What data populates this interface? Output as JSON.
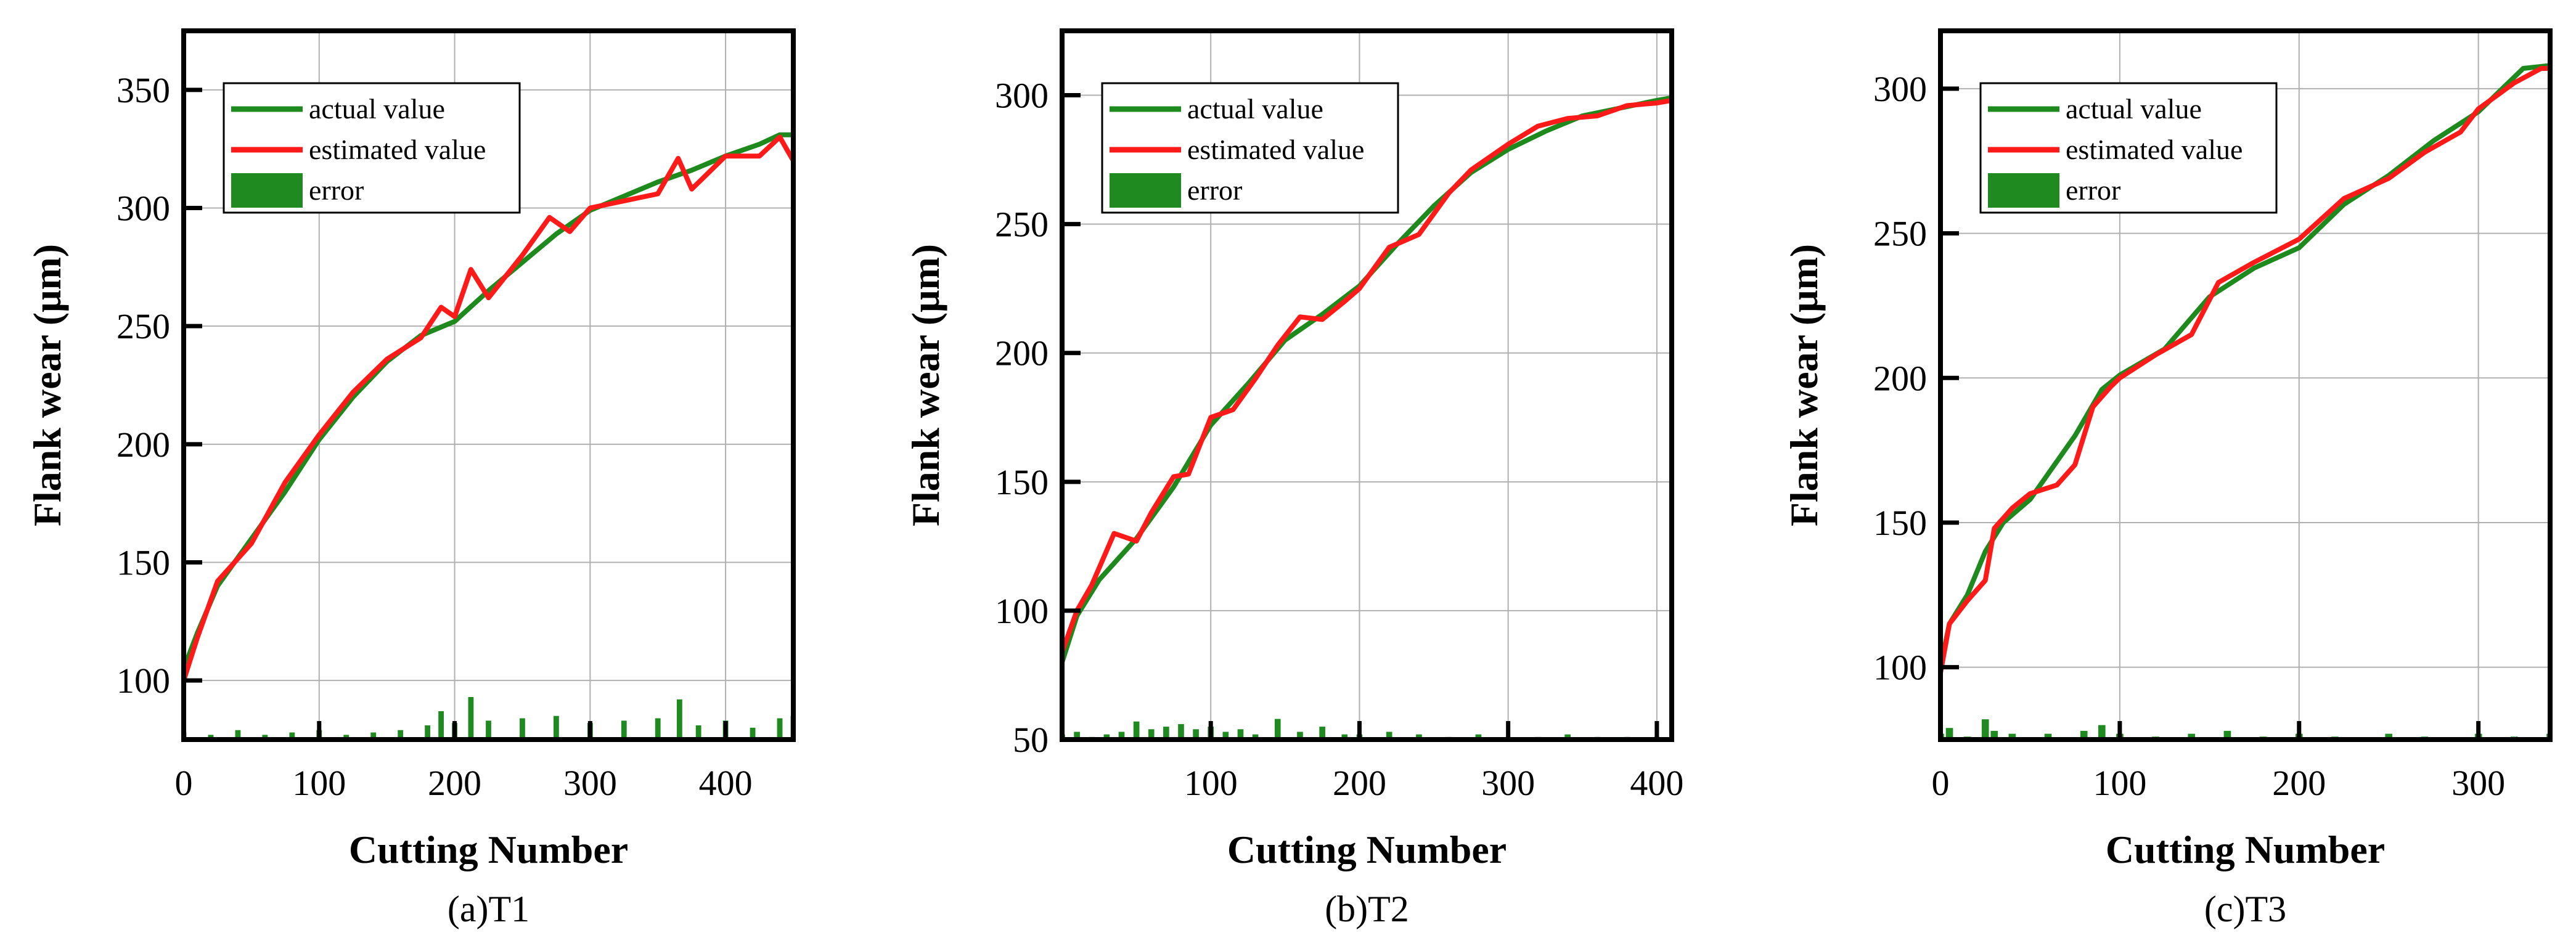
{
  "colors": {
    "actual": "#1e8a1e",
    "estimated": "#ff1a1a",
    "error": "#1f8a1f",
    "grid": "#b0b0b0",
    "axis": "#000000"
  },
  "chart_data": [
    {
      "type": "line",
      "caption": "(a)T1",
      "xlabel": "Cutting Number",
      "ylabel": "Flank wear (μm)",
      "xlim": [
        0,
        450
      ],
      "ylim": [
        75,
        375
      ],
      "xticks": [
        0,
        100,
        200,
        300,
        400
      ],
      "xtick_labels": [
        "0",
        "100",
        "200",
        "300",
        "400"
      ],
      "yticks": [
        100,
        150,
        200,
        250,
        300,
        350
      ],
      "ytick_labels": [
        "100",
        "150",
        "200",
        "250",
        "300",
        "350"
      ],
      "grid": true,
      "legend": {
        "position": "top-left",
        "entries": [
          "actual value",
          "estimated value",
          "error"
        ]
      },
      "series": [
        {
          "name": "actual value",
          "kind": "line",
          "x": [
            0,
            10,
            25,
            50,
            75,
            100,
            125,
            150,
            175,
            200,
            225,
            250,
            275,
            300,
            325,
            350,
            375,
            400,
            425,
            440,
            450
          ],
          "values": [
            105,
            120,
            140,
            160,
            180,
            202,
            220,
            235,
            246,
            252,
            265,
            277,
            289,
            299,
            305,
            311,
            316,
            322,
            327,
            331,
            331
          ]
        },
        {
          "name": "estimated value",
          "kind": "line",
          "x": [
            0,
            10,
            25,
            50,
            75,
            100,
            125,
            150,
            175,
            190,
            200,
            212,
            225,
            250,
            270,
            285,
            300,
            325,
            350,
            365,
            375,
            400,
            425,
            440,
            450
          ],
          "values": [
            100,
            118,
            142,
            158,
            184,
            204,
            222,
            236,
            245,
            258,
            254,
            274,
            262,
            280,
            296,
            290,
            300,
            303,
            306,
            321,
            308,
            322,
            322,
            330,
            320
          ]
        },
        {
          "name": "error",
          "kind": "bar",
          "x": [
            0,
            20,
            40,
            60,
            80,
            100,
            120,
            140,
            160,
            180,
            190,
            200,
            212,
            225,
            250,
            275,
            300,
            325,
            350,
            366,
            380,
            400,
            420,
            440,
            450
          ],
          "values": [
            3,
            2,
            4,
            2,
            3,
            4,
            2,
            3,
            4,
            6,
            12,
            7,
            18,
            8,
            9,
            10,
            7,
            8,
            9,
            17,
            6,
            8,
            5,
            9,
            10
          ]
        }
      ]
    },
    {
      "type": "line",
      "caption": "(b)T2",
      "xlabel": "Cutting Number",
      "ylabel": "Flank wear (μm)",
      "xlim": [
        0,
        410
      ],
      "ylim": [
        50,
        325
      ],
      "xticks": [
        100,
        200,
        300,
        400
      ],
      "xtick_labels": [
        "100",
        "200",
        "300",
        "400"
      ],
      "yticks": [
        50,
        100,
        150,
        200,
        250,
        300
      ],
      "ytick_labels": [
        "50",
        "100",
        "150",
        "200",
        "250",
        "300"
      ],
      "grid": true,
      "legend": {
        "position": "top-left",
        "entries": [
          "actual value",
          "estimated value",
          "error"
        ]
      },
      "series": [
        {
          "name": "actual value",
          "kind": "line",
          "x": [
            0,
            10,
            25,
            50,
            75,
            100,
            125,
            150,
            175,
            200,
            225,
            250,
            275,
            300,
            325,
            350,
            375,
            400,
            410
          ],
          "values": [
            80,
            98,
            112,
            128,
            148,
            172,
            188,
            205,
            215,
            226,
            242,
            257,
            270,
            279,
            286,
            292,
            295,
            298,
            299
          ]
        },
        {
          "name": "estimated value",
          "kind": "line",
          "x": [
            0,
            10,
            20,
            35,
            50,
            60,
            75,
            85,
            100,
            115,
            130,
            145,
            160,
            175,
            190,
            200,
            220,
            240,
            260,
            275,
            300,
            320,
            340,
            360,
            380,
            400,
            410
          ],
          "values": [
            84,
            100,
            110,
            130,
            127,
            138,
            152,
            153,
            175,
            178,
            190,
            203,
            214,
            213,
            220,
            225,
            241,
            246,
            262,
            271,
            281,
            288,
            291,
            292,
            296,
            297,
            298
          ]
        },
        {
          "name": "error",
          "kind": "bar",
          "x": [
            0,
            10,
            20,
            30,
            40,
            50,
            60,
            70,
            80,
            90,
            100,
            110,
            120,
            130,
            145,
            160,
            175,
            190,
            200,
            220,
            240,
            260,
            280,
            300,
            320,
            340,
            360,
            380,
            400
          ],
          "values": [
            2,
            3,
            1,
            2,
            3,
            7,
            4,
            5,
            6,
            4,
            5,
            3,
            4,
            2,
            8,
            3,
            5,
            2,
            2,
            3,
            2,
            1,
            2,
            1,
            1,
            2,
            1,
            1,
            1
          ]
        }
      ]
    },
    {
      "type": "line",
      "caption": "(c)T3",
      "xlabel": "Cutting Number",
      "ylabel": "Flank wear (μm)",
      "xlim": [
        0,
        340
      ],
      "ylim": [
        75,
        320
      ],
      "xticks": [
        0,
        100,
        200,
        300
      ],
      "xtick_labels": [
        "0",
        "100",
        "200",
        "300"
      ],
      "yticks": [
        100,
        150,
        200,
        250,
        300
      ],
      "ytick_labels": [
        "100",
        "150",
        "200",
        "250",
        "300"
      ],
      "grid": true,
      "legend": {
        "position": "top-left",
        "entries": [
          "actual value",
          "estimated value",
          "error"
        ]
      },
      "series": [
        {
          "name": "actual value",
          "kind": "line",
          "x": [
            0,
            5,
            15,
            25,
            35,
            50,
            75,
            90,
            100,
            125,
            150,
            175,
            200,
            225,
            250,
            275,
            300,
            325,
            340
          ],
          "values": [
            100,
            115,
            125,
            140,
            150,
            158,
            180,
            196,
            201,
            210,
            228,
            238,
            245,
            260,
            270,
            282,
            292,
            307,
            308
          ]
        },
        {
          "name": "estimated value",
          "kind": "line",
          "x": [
            0,
            5,
            15,
            25,
            30,
            40,
            50,
            65,
            75,
            85,
            95,
            100,
            120,
            140,
            155,
            175,
            200,
            225,
            250,
            270,
            290,
            300,
            320,
            335,
            340
          ],
          "values": [
            98,
            115,
            123,
            130,
            148,
            155,
            160,
            163,
            170,
            190,
            197,
            200,
            208,
            215,
            233,
            240,
            248,
            262,
            269,
            278,
            285,
            293,
            302,
            307,
            307
          ]
        },
        {
          "name": "error",
          "kind": "bar",
          "x": [
            0,
            5,
            15,
            25,
            30,
            40,
            60,
            80,
            90,
            100,
            120,
            140,
            160,
            180,
            200,
            220,
            250,
            270,
            300,
            320,
            340
          ],
          "values": [
            2,
            4,
            1,
            7,
            3,
            2,
            2,
            3,
            5,
            2,
            1,
            2,
            3,
            1,
            2,
            1,
            2,
            1,
            2,
            1,
            2
          ]
        }
      ]
    }
  ]
}
